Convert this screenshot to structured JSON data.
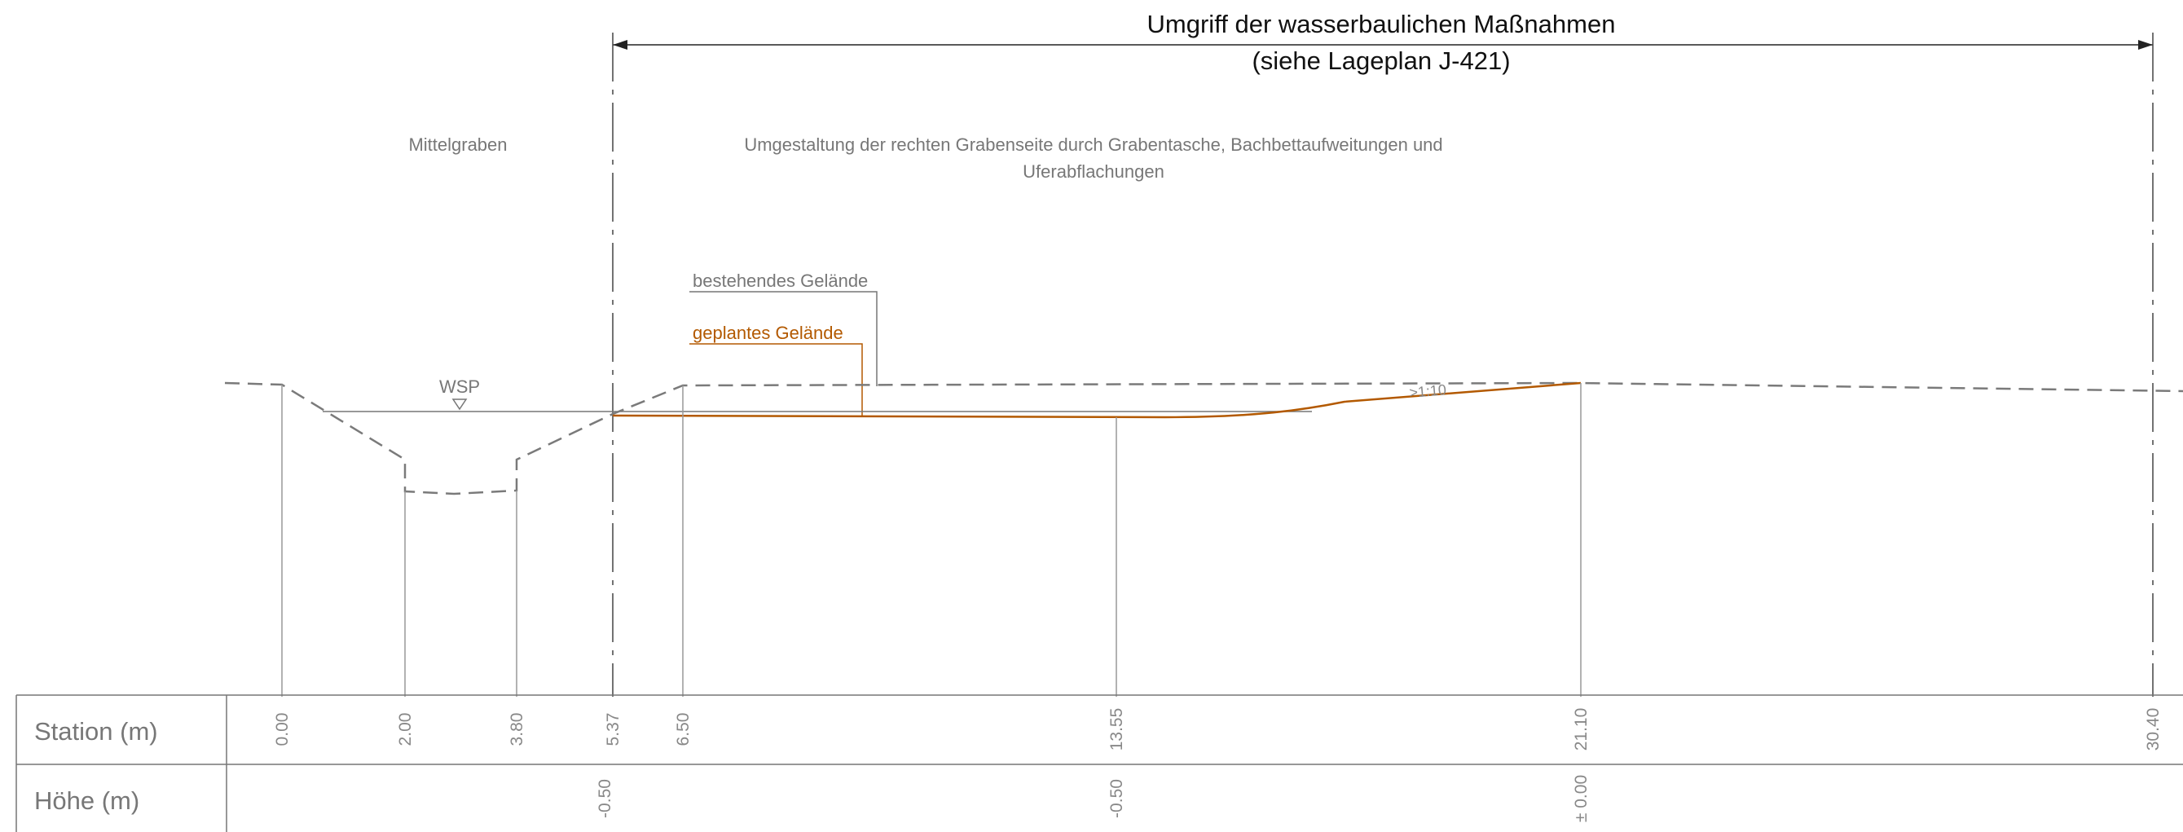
{
  "title": {
    "line1": "Umgriff der wasserbaulichen Maßnahmen",
    "line2": "(siehe Lageplan J-421)"
  },
  "labels": {
    "mittelgraben": "Mittelgraben",
    "umgestaltung_line1": "Umgestaltung der rechten Grabenseite durch Grabentasche, Bachbettaufweitungen und",
    "umgestaltung_line2": "Uferabflachungen",
    "bestehendes_gelaende": "bestehendes Gelände",
    "geplantes_gelaende": "geplantes Gelände",
    "wsp": "WSP",
    "slope": ">1:10"
  },
  "table": {
    "station_header": "Station (m)",
    "hoehe_header": "Höhe (m)",
    "stations": [
      "0.00",
      "2.00",
      "3.80",
      "5.37",
      "6.50",
      "13.55",
      "21.10",
      "30.40"
    ],
    "heights": [
      "-0.50",
      "-0.50",
      "± 0.00"
    ]
  },
  "colors": {
    "existing_terrain": "#7a7a7a",
    "planned_terrain": "#b35900",
    "text_gray": "#777777",
    "title_text": "#111111",
    "grid": "#999999"
  }
}
